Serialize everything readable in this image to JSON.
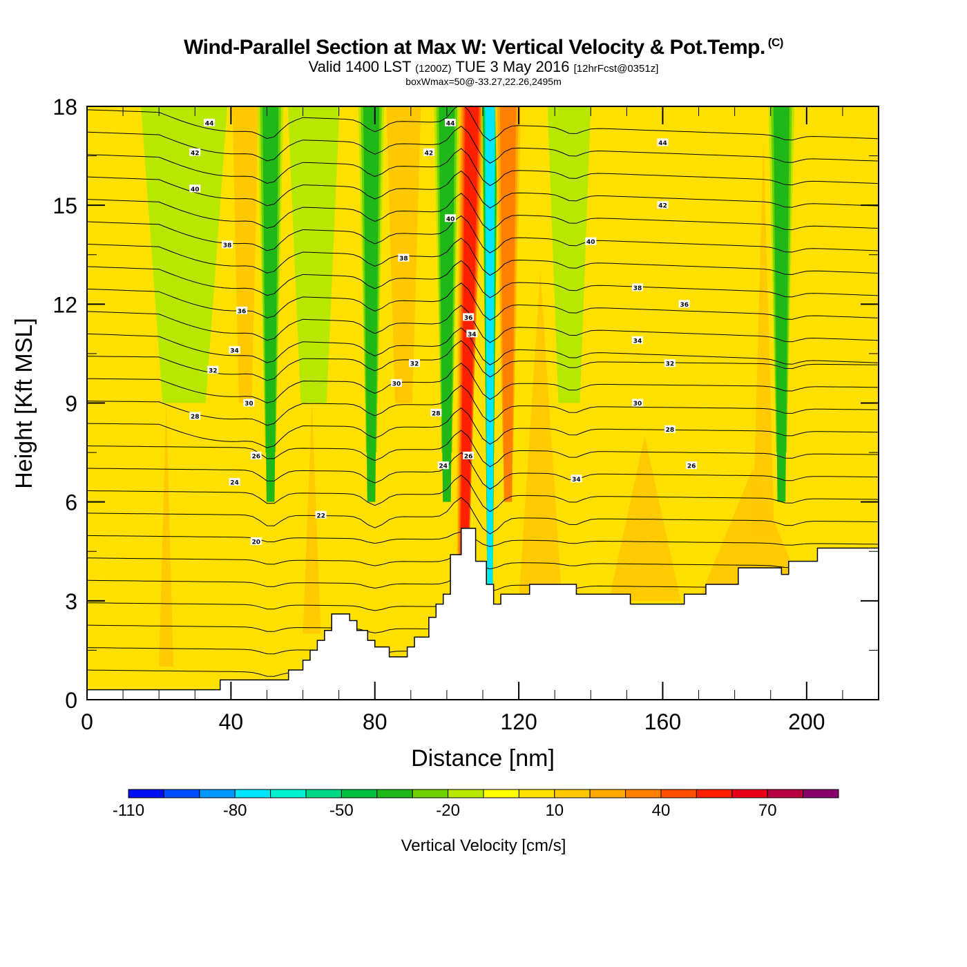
{
  "header": {
    "title": "Wind-Parallel Section at Max W: Vertical Velocity & Pot.Temp.",
    "copyright": "(C)",
    "subtitle_valid": "Valid 1400 LST",
    "subtitle_utc": "(1200Z)",
    "subtitle_date": "TUE 3 May 2016",
    "subtitle_fcst": "[12hrFcst@0351z]",
    "subtitle2": "boxWmax=50@-33.27,22.26,2495m"
  },
  "chart_data": {
    "type": "heatmap",
    "title": "Wind-Parallel Section at Max W: Vertical Velocity & Pot.Temp.",
    "xlabel": "Distance [nm]",
    "ylabel": "Height [Kft MSL]",
    "xlim": [
      0,
      220
    ],
    "ylim": [
      0,
      18
    ],
    "x_ticks": [
      "0",
      "40",
      "80",
      "120",
      "160",
      "200"
    ],
    "x_tick_values": [
      0,
      40,
      80,
      120,
      160,
      200
    ],
    "y_ticks": [
      "0",
      "3",
      "6",
      "9",
      "12",
      "15",
      "18"
    ],
    "y_tick_values": [
      0,
      3,
      6,
      9,
      12,
      15,
      18
    ],
    "colorbar": {
      "title": "Vertical Velocity [cm/s]",
      "labels": [
        "-110",
        "-80",
        "-50",
        "-20",
        "10",
        "40",
        "70"
      ],
      "label_values": [
        -110,
        -80,
        -50,
        -20,
        10,
        40,
        70
      ],
      "levels": [
        -110,
        -100,
        -90,
        -80,
        -70,
        -60,
        -50,
        -40,
        -30,
        -20,
        -10,
        0,
        10,
        20,
        30,
        40,
        50,
        60,
        70,
        80,
        90
      ],
      "colors": [
        "#0010f0",
        "#0050ff",
        "#0098ff",
        "#00e4ff",
        "#00f0d0",
        "#00d888",
        "#00c040",
        "#20b818",
        "#70d000",
        "#b8e800",
        "#ffff00",
        "#ffe000",
        "#ffc800",
        "#ffa800",
        "#ff8000",
        "#ff5000",
        "#ff2000",
        "#e80018",
        "#b80040",
        "#880068"
      ]
    },
    "velocity_bands": [
      {
        "x": 27,
        "w": 10,
        "value": -20
      },
      {
        "x": 44,
        "w": 3,
        "value": 20
      },
      {
        "x": 51,
        "w": 3,
        "value": -40
      },
      {
        "x": 63,
        "w": 6,
        "value": -20
      },
      {
        "x": 79,
        "w": 3,
        "value": -40
      },
      {
        "x": 88,
        "w": 4,
        "value": 20
      },
      {
        "x": 100,
        "w": 3,
        "value": -40
      },
      {
        "x": 107,
        "w": 3,
        "value": 60
      },
      {
        "x": 112,
        "w": 2,
        "value": -80
      },
      {
        "x": 117,
        "w": 3,
        "value": 40
      },
      {
        "x": 134,
        "w": 5,
        "value": -20
      },
      {
        "x": 193,
        "w": 3,
        "value": -40
      }
    ],
    "theta_contours": {
      "label": "Potential Temperature",
      "labeled_values": [
        "20",
        "22",
        "24",
        "26",
        "28",
        "30",
        "32",
        "34",
        "36",
        "38",
        "40",
        "42",
        "44"
      ],
      "levels": [
        20,
        22,
        24,
        26,
        28,
        30,
        32,
        34,
        36,
        38,
        40,
        42,
        44
      ],
      "labels": [
        {
          "text": "44",
          "x": 34,
          "y": 17.5
        },
        {
          "text": "42",
          "x": 30,
          "y": 16.6
        },
        {
          "text": "40",
          "x": 30,
          "y": 15.5
        },
        {
          "text": "38",
          "x": 39,
          "y": 13.8
        },
        {
          "text": "36",
          "x": 43,
          "y": 11.8
        },
        {
          "text": "34",
          "x": 41,
          "y": 10.6
        },
        {
          "text": "32",
          "x": 35,
          "y": 10.0
        },
        {
          "text": "30",
          "x": 45,
          "y": 9.0
        },
        {
          "text": "28",
          "x": 30,
          "y": 8.6
        },
        {
          "text": "26",
          "x": 47,
          "y": 7.4
        },
        {
          "text": "24",
          "x": 41,
          "y": 6.6
        },
        {
          "text": "22",
          "x": 65,
          "y": 5.6
        },
        {
          "text": "20",
          "x": 47,
          "y": 4.8
        },
        {
          "text": "44",
          "x": 101,
          "y": 17.5
        },
        {
          "text": "42",
          "x": 95,
          "y": 16.6
        },
        {
          "text": "40",
          "x": 101,
          "y": 14.6
        },
        {
          "text": "38",
          "x": 88,
          "y": 13.4
        },
        {
          "text": "36",
          "x": 106,
          "y": 11.6
        },
        {
          "text": "34",
          "x": 107,
          "y": 11.1
        },
        {
          "text": "32",
          "x": 91,
          "y": 10.2
        },
        {
          "text": "30",
          "x": 86,
          "y": 9.6
        },
        {
          "text": "28",
          "x": 97,
          "y": 8.7
        },
        {
          "text": "26",
          "x": 106,
          "y": 7.4
        },
        {
          "text": "24",
          "x": 99,
          "y": 7.1
        },
        {
          "text": "44",
          "x": 160,
          "y": 16.9
        },
        {
          "text": "42",
          "x": 160,
          "y": 15.0
        },
        {
          "text": "40",
          "x": 140,
          "y": 13.9
        },
        {
          "text": "38",
          "x": 153,
          "y": 12.5
        },
        {
          "text": "36",
          "x": 166,
          "y": 12.0
        },
        {
          "text": "34",
          "x": 153,
          "y": 10.9
        },
        {
          "text": "32",
          "x": 162,
          "y": 10.2
        },
        {
          "text": "30",
          "x": 153,
          "y": 9.0
        },
        {
          "text": "28",
          "x": 162,
          "y": 8.2
        },
        {
          "text": "26",
          "x": 168,
          "y": 7.1
        },
        {
          "text": "34",
          "x": 136,
          "y": 6.7
        }
      ]
    },
    "terrain": {
      "x": [
        0,
        34,
        37,
        43,
        54,
        56,
        60,
        62,
        64,
        66,
        68,
        73,
        75,
        78,
        80,
        84,
        89,
        91,
        95,
        97,
        99,
        101,
        104,
        108,
        111,
        113,
        115,
        123,
        136,
        151,
        166,
        172,
        181,
        193,
        195,
        203,
        220
      ],
      "y": [
        0.3,
        0.3,
        0.6,
        0.6,
        0.6,
        0.9,
        1.2,
        1.5,
        1.8,
        2.1,
        2.6,
        2.4,
        2.1,
        1.8,
        1.6,
        1.3,
        1.6,
        1.9,
        2.5,
        2.9,
        3.2,
        4.4,
        5.2,
        4.2,
        3.5,
        2.9,
        3.2,
        3.5,
        3.2,
        2.9,
        3.2,
        3.5,
        4.0,
        3.8,
        4.2,
        4.6,
        4.6
      ]
    }
  }
}
